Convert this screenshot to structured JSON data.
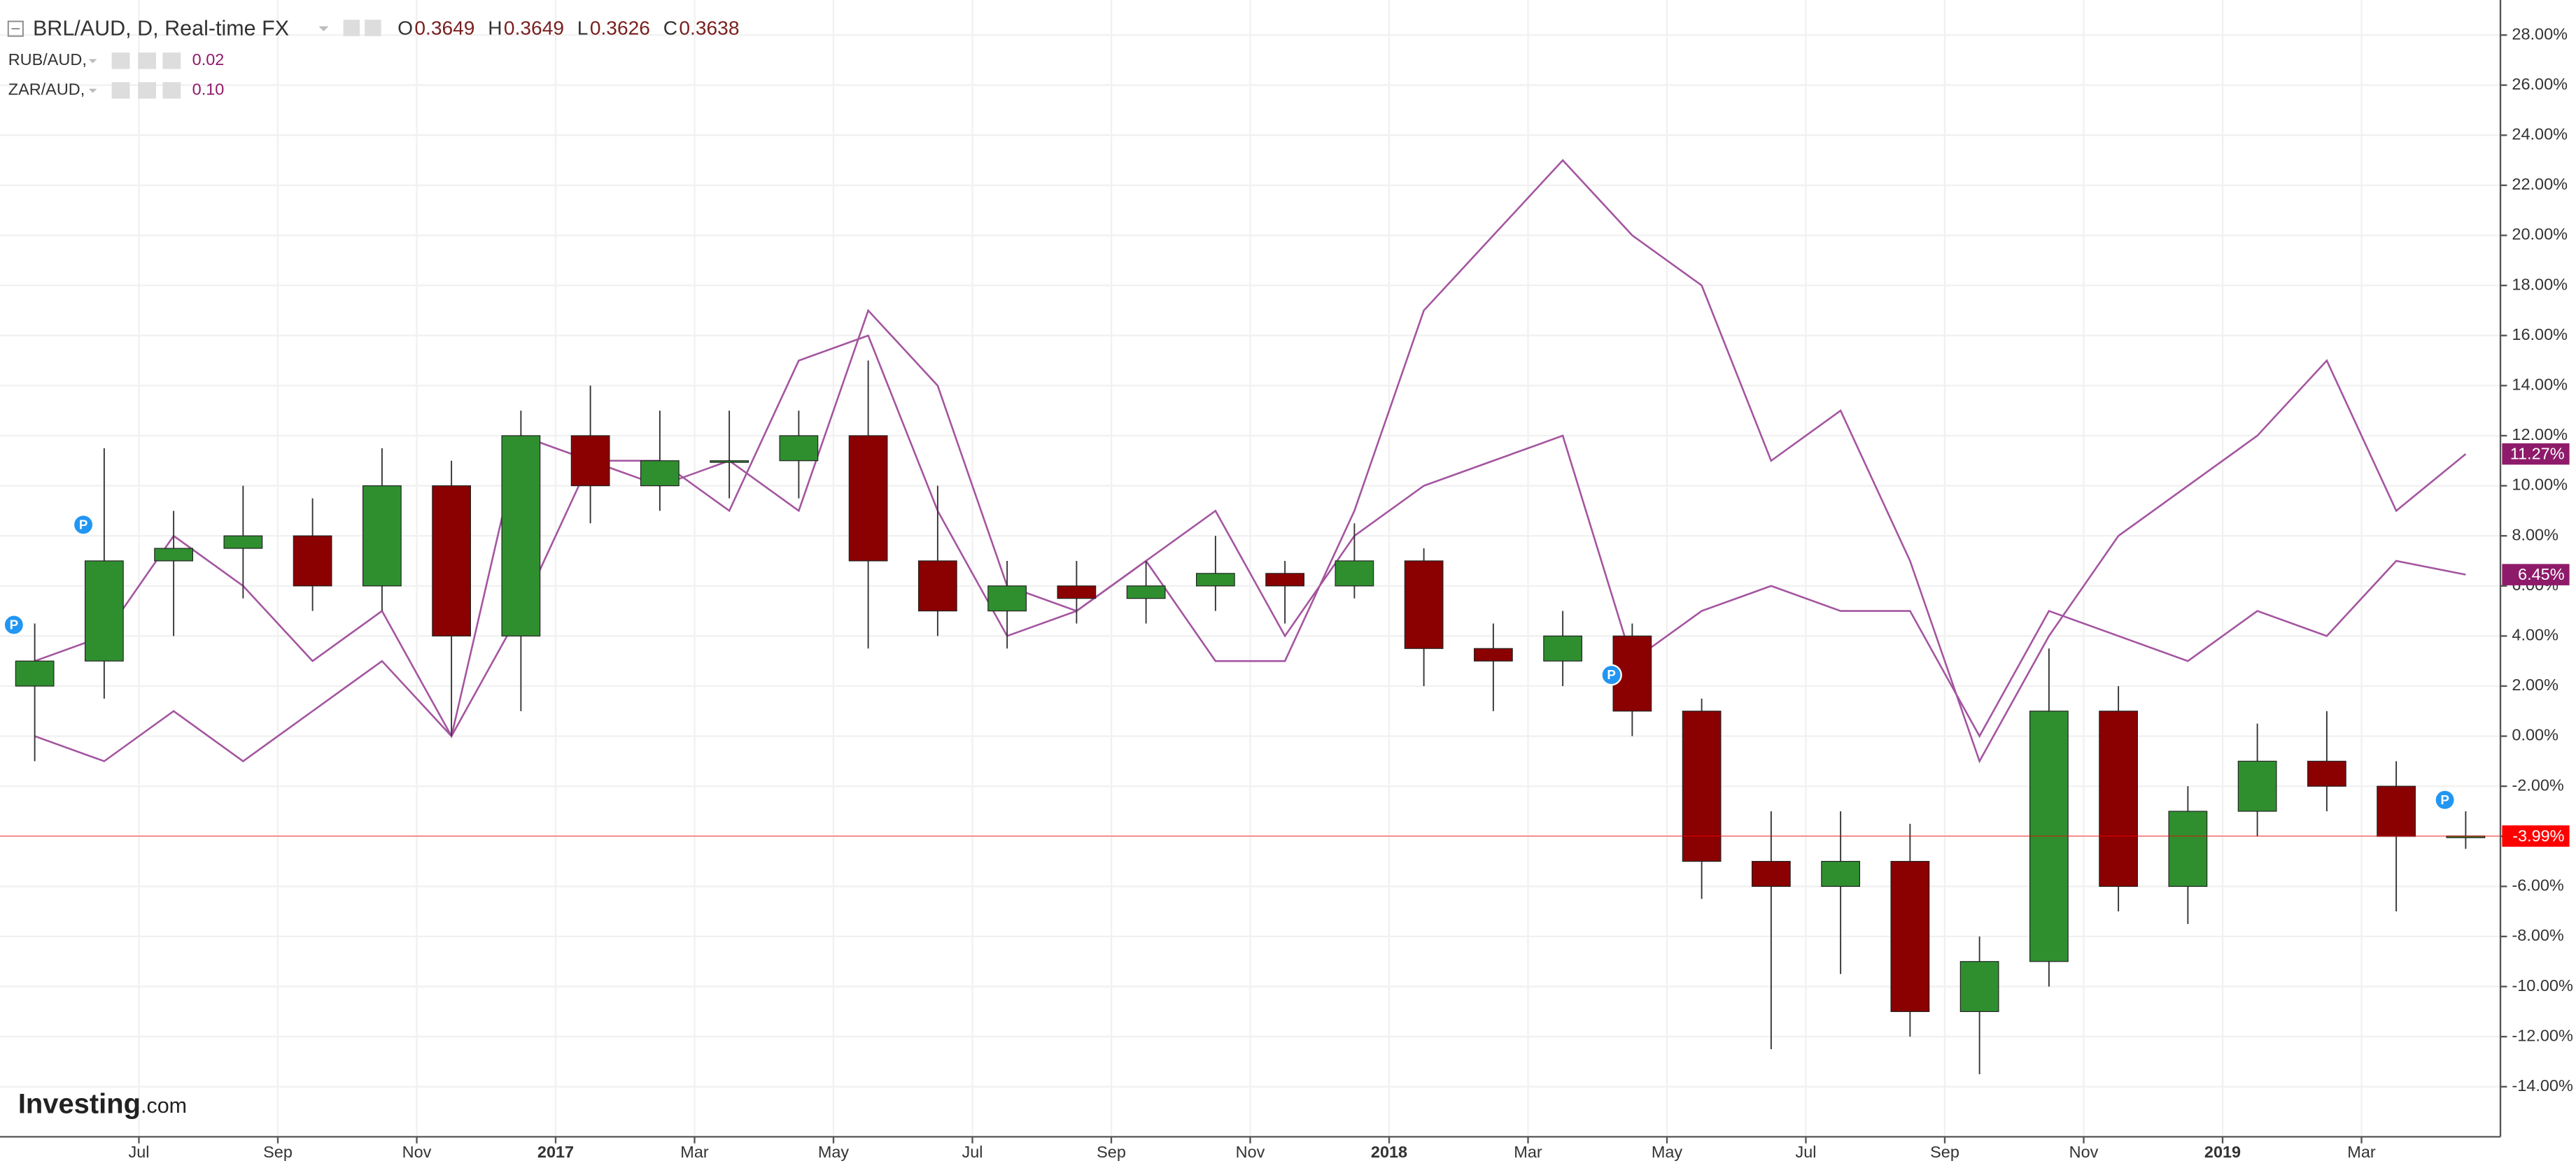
{
  "chart_data": {
    "type": "candlestick",
    "title": "BRL/AUD, D, Real-time FX",
    "ohlc_readout": [
      {
        "label": "O",
        "value": "0.3649"
      },
      {
        "label": "H",
        "value": "0.3649"
      },
      {
        "label": "L",
        "value": "0.3626"
      },
      {
        "label": "C",
        "value": "0.3638"
      }
    ],
    "x": [
      "2016-05",
      "2016-06",
      "2016-07",
      "2016-08",
      "2016-09",
      "2016-10",
      "2016-11",
      "2016-12",
      "2017-01",
      "2017-02",
      "2017-03",
      "2017-04",
      "2017-05",
      "2017-06",
      "2017-07",
      "2017-08",
      "2017-09",
      "2017-10",
      "2017-11",
      "2017-12",
      "2018-01",
      "2018-02",
      "2018-03",
      "2018-04",
      "2018-05",
      "2018-06",
      "2018-07",
      "2018-08",
      "2018-09",
      "2018-10",
      "2018-11",
      "2018-12",
      "2019-01",
      "2019-02",
      "2019-03",
      "2019-04"
    ],
    "candles": {
      "open": [
        2,
        3,
        7,
        7.5,
        8,
        6,
        10,
        4,
        12,
        10,
        11,
        11,
        12,
        7,
        5,
        6,
        5.5,
        6,
        6.5,
        6,
        7,
        3.5,
        3,
        4,
        1,
        -5,
        -6,
        -5,
        -11,
        -9,
        1,
        -6,
        -3,
        -1,
        -2,
        -4
      ],
      "high": [
        4.5,
        11.5,
        9,
        10,
        9.5,
        11.5,
        11,
        13,
        14,
        13,
        13,
        13,
        15,
        10,
        7,
        7,
        7,
        8,
        7,
        8.5,
        7.5,
        4.5,
        5,
        4.5,
        1.5,
        -3,
        -3,
        -3.5,
        -8,
        3.5,
        2,
        -2,
        0.5,
        1,
        -1,
        -3
      ],
      "low": [
        -1,
        1.5,
        4,
        5.5,
        5,
        5,
        0,
        1,
        8.5,
        9,
        9.5,
        9.5,
        3.5,
        4,
        3.5,
        4.5,
        4.5,
        5,
        4.5,
        5.5,
        2,
        1,
        2,
        0,
        -6.5,
        -12.5,
        -9.5,
        -12,
        -13.5,
        -10,
        -7,
        -7.5,
        -4,
        -3,
        -7,
        -4.5
      ],
      "close": [
        3,
        7,
        7.5,
        8,
        6,
        10,
        4,
        12,
        10,
        11,
        11,
        12,
        7,
        5,
        6,
        5.5,
        6,
        6.5,
        6,
        7,
        3.5,
        3,
        4,
        1,
        -5,
        -6,
        -5,
        -11,
        -9,
        1,
        -6,
        -3,
        -1,
        -2,
        -4,
        -3.99
      ],
      "up_color": "#2f8f2f",
      "down_color": "#8b0000",
      "last_label": "-3.99%",
      "last_color": "#ff0000"
    },
    "series": [
      {
        "name": "RUB/AUD,",
        "readout": "0.02",
        "color": "#a455a0",
        "label_color": "#8e1a6a",
        "last_label": "6.45%",
        "values": [
          0,
          -1,
          1,
          -1,
          1,
          3,
          0,
          12,
          11,
          10,
          11,
          9,
          17,
          14,
          6,
          5,
          7,
          9,
          4,
          8,
          10,
          11,
          12,
          3,
          5,
          6,
          5,
          5,
          0,
          5,
          4,
          3,
          5,
          4,
          7,
          6.45
        ]
      },
      {
        "name": "ZAR/AUD,",
        "readout": "0.10",
        "color": "#a455a0",
        "label_color": "#8e1a6a",
        "last_label": "11.27%",
        "values": [
          3,
          4,
          8,
          6,
          3,
          5,
          0,
          5,
          11,
          11,
          9,
          15,
          16,
          9,
          4,
          5,
          7,
          3,
          3,
          9,
          17,
          20,
          23,
          20,
          18,
          11,
          13,
          7,
          -1,
          4,
          8,
          10,
          12,
          15,
          9,
          11.27
        ]
      }
    ],
    "events": [
      {
        "x": "2016-05",
        "label": "P"
      },
      {
        "x": "2016-06",
        "label": "P"
      },
      {
        "x": "2018-04",
        "label": "P"
      },
      {
        "x": "2019-04",
        "label": "P"
      }
    ],
    "xlim": [
      "2016-05",
      "2019-04"
    ],
    "xticks": [
      {
        "value": "2016-07",
        "label": "Jul"
      },
      {
        "value": "2016-09",
        "label": "Sep"
      },
      {
        "value": "2016-11",
        "label": "Nov"
      },
      {
        "value": "2017-01",
        "label": "2017"
      },
      {
        "value": "2017-03",
        "label": "Mar"
      },
      {
        "value": "2017-05",
        "label": "May"
      },
      {
        "value": "2017-07",
        "label": "Jul"
      },
      {
        "value": "2017-09",
        "label": "Sep"
      },
      {
        "value": "2017-11",
        "label": "Nov"
      },
      {
        "value": "2018-01",
        "label": "2018"
      },
      {
        "value": "2018-03",
        "label": "Mar"
      },
      {
        "value": "2018-05",
        "label": "May"
      },
      {
        "value": "2018-07",
        "label": "Jul"
      },
      {
        "value": "2018-09",
        "label": "Sep"
      },
      {
        "value": "2018-11",
        "label": "Nov"
      },
      {
        "value": "2019-01",
        "label": "2019"
      },
      {
        "value": "2019-03",
        "label": "Mar"
      }
    ],
    "ylim": [
      -16,
      29.4
    ],
    "yticks": [
      {
        "value": 28,
        "label": "28.00%"
      },
      {
        "value": 26,
        "label": "26.00%"
      },
      {
        "value": 24,
        "label": "24.00%"
      },
      {
        "value": 22,
        "label": "22.00%"
      },
      {
        "value": 20,
        "label": "20.00%"
      },
      {
        "value": 18,
        "label": "18.00%"
      },
      {
        "value": 16,
        "label": "16.00%"
      },
      {
        "value": 14,
        "label": "14.00%"
      },
      {
        "value": 12,
        "label": "12.00%"
      },
      {
        "value": 10,
        "label": "10.00%"
      },
      {
        "value": 8,
        "label": "8.00%"
      },
      {
        "value": 6,
        "label": "6.00%"
      },
      {
        "value": 4,
        "label": "4.00%"
      },
      {
        "value": 2,
        "label": "2.00%"
      },
      {
        "value": 0,
        "label": "0.00%"
      },
      {
        "value": -2,
        "label": "-2.00%"
      },
      {
        "value": -4,
        "label": "-4.00%"
      },
      {
        "value": -6,
        "label": "-6.00%"
      },
      {
        "value": -8,
        "label": "-8.00%"
      },
      {
        "value": -10,
        "label": "-10.00%"
      },
      {
        "value": -12,
        "label": "-12.00%"
      },
      {
        "value": -14,
        "label": "-14.00%"
      }
    ],
    "grid": true,
    "watermark": "Investing",
    "watermark_suffix": ".com"
  }
}
